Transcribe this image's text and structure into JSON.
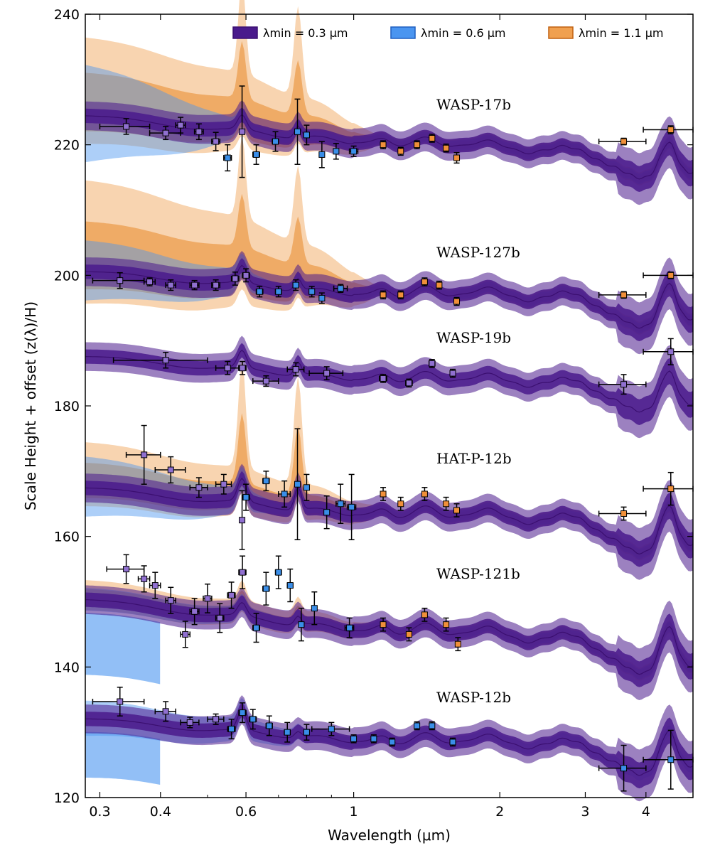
{
  "chart_data": {
    "type": "line",
    "xlabel": "Wavelength (μm)",
    "ylabel": "Scale Height + offset (z(λ)/H)",
    "xscale": "log",
    "xlim": [
      0.28,
      5.0
    ],
    "ylim": [
      120,
      240
    ],
    "x_ticks": [
      0.3,
      0.4,
      0.6,
      1,
      2,
      3,
      4
    ],
    "x_tick_labels": [
      "0.3",
      "0.4",
      "0.6",
      "1",
      "2",
      "3",
      "4"
    ],
    "y_ticks": [
      120,
      140,
      160,
      180,
      200,
      220,
      240
    ],
    "y_tick_labels": [
      "120",
      "140",
      "160",
      "180",
      "200",
      "220",
      "240"
    ],
    "legend_position": "top-right",
    "legend": [
      {
        "name": "λmin = 0.3 μm",
        "color": "#3b0f70",
        "fill": "#4a1a8c"
      },
      {
        "name": "λmin = 0.6 μm",
        "color": "#1f5fbf",
        "fill": "#4a95f0"
      },
      {
        "name": "λmin = 1.1 μm",
        "color": "#c06010",
        "fill": "#f0a050"
      }
    ],
    "planets": [
      {
        "name": "WASP-17b",
        "offset": 222,
        "rayleigh": 1.2,
        "tail": 5,
        "sodium": 1,
        "potassium": 0.8,
        "ir": 1.0,
        "halo_orange": 11,
        "halo_blue": 7,
        "halo_x": 0.6,
        "orange_peaks": 12,
        "points": [
          {
            "x": 0.34,
            "y": 222.8,
            "xe": 0.04,
            "ye": 1.2,
            "c": "p"
          },
          {
            "x": 0.41,
            "y": 221.8,
            "xe": 0.03,
            "ye": 1.0,
            "c": "p"
          },
          {
            "x": 0.44,
            "y": 223,
            "xe": 0.01,
            "ye": 1.2,
            "c": "p"
          },
          {
            "x": 0.48,
            "y": 222,
            "xe": 0.01,
            "ye": 1.2,
            "c": "p"
          },
          {
            "x": 0.52,
            "y": 220.5,
            "xe": 0.01,
            "ye": 1.4,
            "c": "p"
          },
          {
            "x": 0.55,
            "y": 218,
            "xe": 0.01,
            "ye": 2.0,
            "c": "b"
          },
          {
            "x": 0.589,
            "y": 222,
            "xe": 0.005,
            "ye": 7,
            "c": "p"
          },
          {
            "x": 0.63,
            "y": 218.5,
            "xe": 0.01,
            "ye": 1.5,
            "c": "b"
          },
          {
            "x": 0.69,
            "y": 220.5,
            "xe": 0.01,
            "ye": 1.5,
            "c": "b"
          },
          {
            "x": 0.766,
            "y": 222,
            "xe": 0.005,
            "ye": 5,
            "c": "b"
          },
          {
            "x": 0.8,
            "y": 221.5,
            "xe": 0.01,
            "ye": 1.5,
            "c": "b"
          },
          {
            "x": 0.86,
            "y": 218.5,
            "xe": 0.01,
            "ye": 2.0,
            "c": "b"
          },
          {
            "x": 0.92,
            "y": 219,
            "xe": 0.01,
            "ye": 1.2,
            "c": "b"
          },
          {
            "x": 1.0,
            "y": 219,
            "xe": 0.02,
            "ye": 0.8,
            "c": "b"
          },
          {
            "x": 1.15,
            "y": 220,
            "xe": 0.01,
            "ye": 0.6,
            "c": "o"
          },
          {
            "x": 1.25,
            "y": 219,
            "xe": 0.01,
            "ye": 0.6,
            "c": "o"
          },
          {
            "x": 1.35,
            "y": 220,
            "xe": 0.01,
            "ye": 0.6,
            "c": "o"
          },
          {
            "x": 1.45,
            "y": 221,
            "xe": 0.01,
            "ye": 0.6,
            "c": "o"
          },
          {
            "x": 1.55,
            "y": 219.5,
            "xe": 0.01,
            "ye": 0.6,
            "c": "o"
          },
          {
            "x": 1.63,
            "y": 218,
            "xe": 0.01,
            "ye": 0.8,
            "c": "o"
          },
          {
            "x": 3.6,
            "y": 220.5,
            "xe": 0.4,
            "ye": 0.5,
            "c": "o"
          },
          {
            "x": 4.5,
            "y": 222.3,
            "xe": 0.55,
            "ye": 0.6,
            "c": "o"
          }
        ]
      },
      {
        "name": "WASP-127b",
        "offset": 198.5,
        "rayleigh": 1.0,
        "tail": 5,
        "sodium": 1.2,
        "potassium": 0.8,
        "ir": 1.2,
        "halo_orange": 13,
        "halo_blue": 4,
        "halo_x": 0.7,
        "orange_peaks": 10,
        "points": [
          {
            "x": 0.33,
            "y": 199.2,
            "xe": 0.04,
            "ye": 1.2,
            "c": "p"
          },
          {
            "x": 0.38,
            "y": 199,
            "xe": 0.01,
            "ye": 0.6,
            "c": "p"
          },
          {
            "x": 0.42,
            "y": 198.5,
            "xe": 0.01,
            "ye": 0.8,
            "c": "p"
          },
          {
            "x": 0.47,
            "y": 198.5,
            "xe": 0.01,
            "ye": 0.7,
            "c": "p"
          },
          {
            "x": 0.52,
            "y": 198.5,
            "xe": 0.01,
            "ye": 0.8,
            "c": "p"
          },
          {
            "x": 0.57,
            "y": 199.5,
            "xe": 0.01,
            "ye": 1.0,
            "c": "p"
          },
          {
            "x": 0.6,
            "y": 200,
            "xe": 0.01,
            "ye": 1.0,
            "c": "p"
          },
          {
            "x": 0.64,
            "y": 197.5,
            "xe": 0.01,
            "ye": 0.8,
            "c": "b"
          },
          {
            "x": 0.7,
            "y": 197.5,
            "xe": 0.01,
            "ye": 0.8,
            "c": "b"
          },
          {
            "x": 0.76,
            "y": 198.5,
            "xe": 0.01,
            "ye": 0.8,
            "c": "b"
          },
          {
            "x": 0.82,
            "y": 197.5,
            "xe": 0.01,
            "ye": 0.8,
            "c": "b"
          },
          {
            "x": 0.86,
            "y": 196.5,
            "xe": 0.01,
            "ye": 0.8,
            "c": "b"
          },
          {
            "x": 0.94,
            "y": 198,
            "xe": 0.03,
            "ye": 0.6,
            "c": "b"
          },
          {
            "x": 1.15,
            "y": 197,
            "xe": 0.01,
            "ye": 0.6,
            "c": "o"
          },
          {
            "x": 1.25,
            "y": 197,
            "xe": 0.01,
            "ye": 0.6,
            "c": "o"
          },
          {
            "x": 1.4,
            "y": 199,
            "xe": 0.01,
            "ye": 0.6,
            "c": "o"
          },
          {
            "x": 1.5,
            "y": 198.5,
            "xe": 0.01,
            "ye": 0.6,
            "c": "o"
          },
          {
            "x": 1.63,
            "y": 196,
            "xe": 0.01,
            "ye": 0.6,
            "c": "o"
          },
          {
            "x": 3.6,
            "y": 197,
            "xe": 0.4,
            "ye": 0.5,
            "c": "o"
          },
          {
            "x": 4.5,
            "y": 200,
            "xe": 0.55,
            "ye": 0.5,
            "c": "o"
          }
        ]
      },
      {
        "name": "WASP-19b",
        "offset": 185.5,
        "rayleigh": 1.0,
        "tail": 1.5,
        "sodium": 1.2,
        "potassium": 0.9,
        "ir": 1.1,
        "halo_orange": 0,
        "halo_blue": 0,
        "halo_x": 0.5,
        "orange_peaks": 0,
        "points": [
          {
            "x": 0.41,
            "y": 187,
            "xe": 0.09,
            "ye": 1.2,
            "c": "p"
          },
          {
            "x": 0.55,
            "y": 185.8,
            "xe": 0.03,
            "ye": 1.0,
            "c": "p"
          },
          {
            "x": 0.59,
            "y": 185.8,
            "xe": 0.01,
            "ye": 1.0,
            "c": "p"
          },
          {
            "x": 0.66,
            "y": 183.8,
            "xe": 0.04,
            "ye": 0.8,
            "c": "p"
          },
          {
            "x": 0.76,
            "y": 185.6,
            "xe": 0.03,
            "ye": 1.0,
            "c": "p"
          },
          {
            "x": 0.88,
            "y": 185,
            "xe": 0.07,
            "ye": 1.0,
            "c": "p"
          },
          {
            "x": 1.15,
            "y": 184.2,
            "xe": 0.02,
            "ye": 0.6,
            "c": "p"
          },
          {
            "x": 1.3,
            "y": 183.5,
            "xe": 0.02,
            "ye": 0.6,
            "c": "p"
          },
          {
            "x": 1.45,
            "y": 186.5,
            "xe": 0.02,
            "ye": 0.6,
            "c": "p"
          },
          {
            "x": 1.6,
            "y": 185,
            "xe": 0.02,
            "ye": 0.6,
            "c": "p"
          },
          {
            "x": 3.6,
            "y": 183.3,
            "xe": 0.4,
            "ye": 1.5,
            "c": "p"
          },
          {
            "x": 4.5,
            "y": 188.3,
            "xe": 0.55,
            "ye": 2.0,
            "c": "p"
          }
        ]
      },
      {
        "name": "HAT-P-12b",
        "offset": 165,
        "rayleigh": 1.2,
        "tail": 5,
        "sodium": 1.6,
        "potassium": 1.6,
        "ir": 1.3,
        "halo_orange": 6,
        "halo_blue": 4,
        "halo_x": 0.7,
        "orange_peaks": 13,
        "points": [
          {
            "x": 0.37,
            "y": 172.5,
            "xe": 0.03,
            "ye": 4.5,
            "c": "p"
          },
          {
            "x": 0.42,
            "y": 170.2,
            "xe": 0.03,
            "ye": 2.0,
            "c": "p"
          },
          {
            "x": 0.48,
            "y": 167.5,
            "xe": 0.02,
            "ye": 1.5,
            "c": "p"
          },
          {
            "x": 0.54,
            "y": 168,
            "xe": 0.02,
            "ye": 1.5,
            "c": "p"
          },
          {
            "x": 0.589,
            "y": 162.5,
            "xe": 0.005,
            "ye": 4.5,
            "c": "p"
          },
          {
            "x": 0.6,
            "y": 166,
            "xe": 0.01,
            "ye": 2.0,
            "c": "b"
          },
          {
            "x": 0.66,
            "y": 168.5,
            "xe": 0.01,
            "ye": 1.5,
            "c": "b"
          },
          {
            "x": 0.72,
            "y": 166.5,
            "xe": 0.02,
            "ye": 2.0,
            "c": "b"
          },
          {
            "x": 0.766,
            "y": 168,
            "xe": 0.005,
            "ye": 8.5,
            "c": "b"
          },
          {
            "x": 0.8,
            "y": 167.5,
            "xe": 0.01,
            "ye": 2.0,
            "c": "b"
          },
          {
            "x": 0.88,
            "y": 163.7,
            "xe": 0.01,
            "ye": 2.5,
            "c": "b"
          },
          {
            "x": 0.94,
            "y": 165,
            "xe": 0.02,
            "ye": 3.0,
            "c": "b"
          },
          {
            "x": 0.99,
            "y": 164.5,
            "xe": 0.02,
            "ye": 5.0,
            "c": "b"
          },
          {
            "x": 1.15,
            "y": 166.5,
            "xe": 0.01,
            "ye": 1.0,
            "c": "o"
          },
          {
            "x": 1.25,
            "y": 165,
            "xe": 0.01,
            "ye": 1.0,
            "c": "o"
          },
          {
            "x": 1.4,
            "y": 166.5,
            "xe": 0.01,
            "ye": 1.0,
            "c": "o"
          },
          {
            "x": 1.55,
            "y": 165,
            "xe": 0.01,
            "ye": 1.0,
            "c": "o"
          },
          {
            "x": 1.63,
            "y": 164,
            "xe": 0.01,
            "ye": 1.0,
            "c": "o"
          },
          {
            "x": 3.6,
            "y": 163.5,
            "xe": 0.4,
            "ye": 1.0,
            "c": "o"
          },
          {
            "x": 4.5,
            "y": 167.3,
            "xe": 0.55,
            "ye": 2.5,
            "c": "o"
          }
        ]
      },
      {
        "name": "WASP-121b",
        "offset": 147.5,
        "rayleigh": 1.4,
        "tail": -3,
        "sodium": 0.9,
        "potassium": 0.6,
        "ir": 1.3,
        "halo_orange": 2,
        "halo_blue": 1,
        "halo_x": 0.9,
        "orange_peaks": 1,
        "points": [
          {
            "x": 0.34,
            "y": 155,
            "xe": 0.03,
            "ye": 2.2,
            "c": "p"
          },
          {
            "x": 0.37,
            "y": 153.5,
            "xe": 0.01,
            "ye": 2.0,
            "c": "p"
          },
          {
            "x": 0.39,
            "y": 152.5,
            "xe": 0.01,
            "ye": 2.0,
            "c": "p"
          },
          {
            "x": 0.42,
            "y": 150.2,
            "xe": 0.01,
            "ye": 2.0,
            "c": "p"
          },
          {
            "x": 0.45,
            "y": 145,
            "xe": 0.01,
            "ye": 2.0,
            "c": "p"
          },
          {
            "x": 0.47,
            "y": 148.5,
            "xe": 0.01,
            "ye": 2.0,
            "c": "p"
          },
          {
            "x": 0.5,
            "y": 150.5,
            "xe": 0.01,
            "ye": 2.2,
            "c": "p"
          },
          {
            "x": 0.53,
            "y": 147.5,
            "xe": 0.01,
            "ye": 2.2,
            "c": "p"
          },
          {
            "x": 0.56,
            "y": 151,
            "xe": 0.01,
            "ye": 2.0,
            "c": "p"
          },
          {
            "x": 0.59,
            "y": 154.5,
            "xe": 0.01,
            "ye": 2.5,
            "c": "p"
          },
          {
            "x": 0.63,
            "y": 146,
            "xe": 0.01,
            "ye": 2.2,
            "c": "b"
          },
          {
            "x": 0.66,
            "y": 152,
            "xe": 0.01,
            "ye": 2.5,
            "c": "b"
          },
          {
            "x": 0.7,
            "y": 154.5,
            "xe": 0.01,
            "ye": 2.5,
            "c": "b"
          },
          {
            "x": 0.74,
            "y": 152.5,
            "xe": 0.01,
            "ye": 2.5,
            "c": "b"
          },
          {
            "x": 0.78,
            "y": 146.5,
            "xe": 0.01,
            "ye": 2.5,
            "c": "b"
          },
          {
            "x": 0.83,
            "y": 149,
            "xe": 0.01,
            "ye": 2.5,
            "c": "b"
          },
          {
            "x": 0.98,
            "y": 146,
            "xe": 0.02,
            "ye": 1.5,
            "c": "b"
          },
          {
            "x": 1.15,
            "y": 146.5,
            "xe": 0.01,
            "ye": 1.0,
            "c": "o"
          },
          {
            "x": 1.3,
            "y": 145,
            "xe": 0.01,
            "ye": 1.0,
            "c": "o"
          },
          {
            "x": 1.4,
            "y": 148,
            "xe": 0.01,
            "ye": 1.0,
            "c": "o"
          },
          {
            "x": 1.55,
            "y": 146.5,
            "xe": 0.01,
            "ye": 1.0,
            "c": "o"
          },
          {
            "x": 1.64,
            "y": 143.5,
            "xe": 0.01,
            "ye": 1.0,
            "c": "o"
          }
        ]
      },
      {
        "name": "WASP-12b",
        "offset": 130,
        "rayleigh": 1.0,
        "tail": -2,
        "sodium": 1.4,
        "potassium": 0.4,
        "ir": 1.2,
        "halo_orange": 0,
        "halo_blue": 2,
        "halo_x": 0.9,
        "orange_peaks": 0,
        "points": [
          {
            "x": 0.33,
            "y": 134.7,
            "xe": 0.04,
            "ye": 2.2,
            "c": "p"
          },
          {
            "x": 0.41,
            "y": 133.2,
            "xe": 0.02,
            "ye": 1.5,
            "c": "p"
          },
          {
            "x": 0.46,
            "y": 131.5,
            "xe": 0.02,
            "ye": 0.8,
            "c": "p"
          },
          {
            "x": 0.52,
            "y": 132,
            "xe": 0.02,
            "ye": 0.8,
            "c": "p"
          },
          {
            "x": 0.56,
            "y": 130.5,
            "xe": 0.01,
            "ye": 1.5,
            "c": "b"
          },
          {
            "x": 0.59,
            "y": 133,
            "xe": 0.01,
            "ye": 1.5,
            "c": "b"
          },
          {
            "x": 0.62,
            "y": 132,
            "xe": 0.01,
            "ye": 1.5,
            "c": "b"
          },
          {
            "x": 0.67,
            "y": 131,
            "xe": 0.01,
            "ye": 1.5,
            "c": "b"
          },
          {
            "x": 0.73,
            "y": 130,
            "xe": 0.01,
            "ye": 1.5,
            "c": "b"
          },
          {
            "x": 0.8,
            "y": 130,
            "xe": 0.01,
            "ye": 1.2,
            "c": "b"
          },
          {
            "x": 0.9,
            "y": 130.5,
            "xe": 0.08,
            "ye": 1.0,
            "c": "b"
          },
          {
            "x": 1.0,
            "y": 129,
            "xe": 0.01,
            "ye": 0.6,
            "c": "b"
          },
          {
            "x": 1.1,
            "y": 129,
            "xe": 0.01,
            "ye": 0.6,
            "c": "b"
          },
          {
            "x": 1.2,
            "y": 128.5,
            "xe": 0.01,
            "ye": 0.6,
            "c": "b"
          },
          {
            "x": 1.35,
            "y": 131,
            "xe": 0.01,
            "ye": 0.6,
            "c": "b"
          },
          {
            "x": 1.45,
            "y": 131,
            "xe": 0.01,
            "ye": 0.6,
            "c": "b"
          },
          {
            "x": 1.6,
            "y": 128.5,
            "xe": 0.01,
            "ye": 0.6,
            "c": "b"
          },
          {
            "x": 3.6,
            "y": 124.5,
            "xe": 0.4,
            "ye": 3.5,
            "c": "b"
          },
          {
            "x": 4.5,
            "y": 125.8,
            "xe": 0.55,
            "ye": 4.5,
            "c": "b"
          }
        ]
      }
    ]
  }
}
